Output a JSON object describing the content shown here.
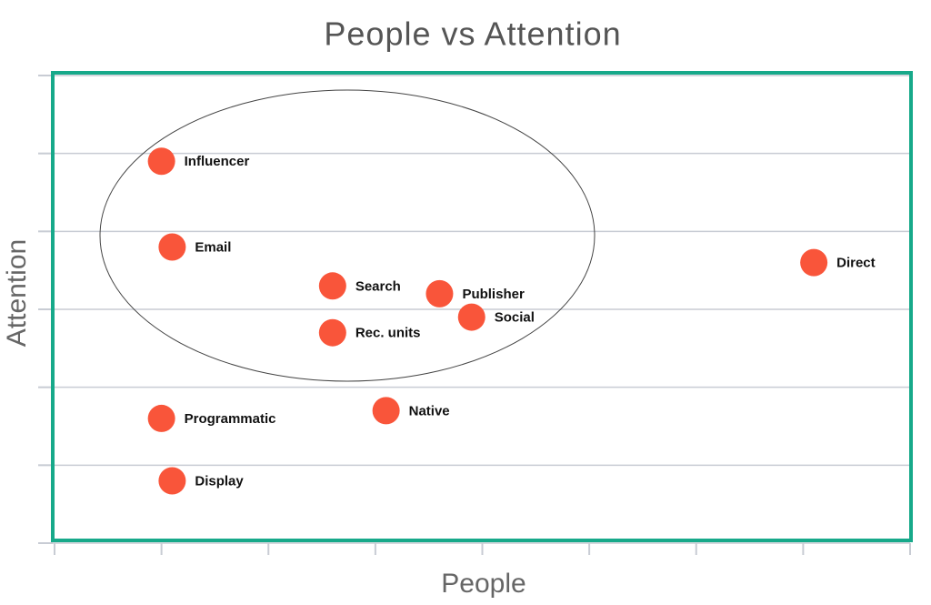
{
  "chart_data": {
    "type": "scatter",
    "title": "People vs Attention",
    "x_label": "People",
    "y_label": "Attention",
    "labels": [
      "Influencer",
      "Email",
      "Search",
      "Rec. units",
      "Publisher",
      "Social",
      "Native",
      "Programmatic",
      "Display",
      "Direct"
    ],
    "x": [
      1.0,
      1.1,
      2.6,
      2.6,
      3.6,
      3.9,
      3.1,
      1.0,
      1.1,
      7.1
    ],
    "y": [
      4.9,
      3.8,
      3.3,
      2.7,
      3.2,
      2.9,
      1.7,
      1.6,
      0.8,
      3.6
    ],
    "color": "#f9553a",
    "xlim": [
      0,
      8
    ],
    "ylim": [
      0,
      6
    ],
    "xticks": [
      0,
      1,
      2,
      3,
      4,
      5,
      6,
      7,
      8
    ],
    "yticks": [
      0,
      1,
      2,
      3,
      4,
      5,
      6
    ],
    "grid": true,
    "frame_color": "#17a98a"
  }
}
